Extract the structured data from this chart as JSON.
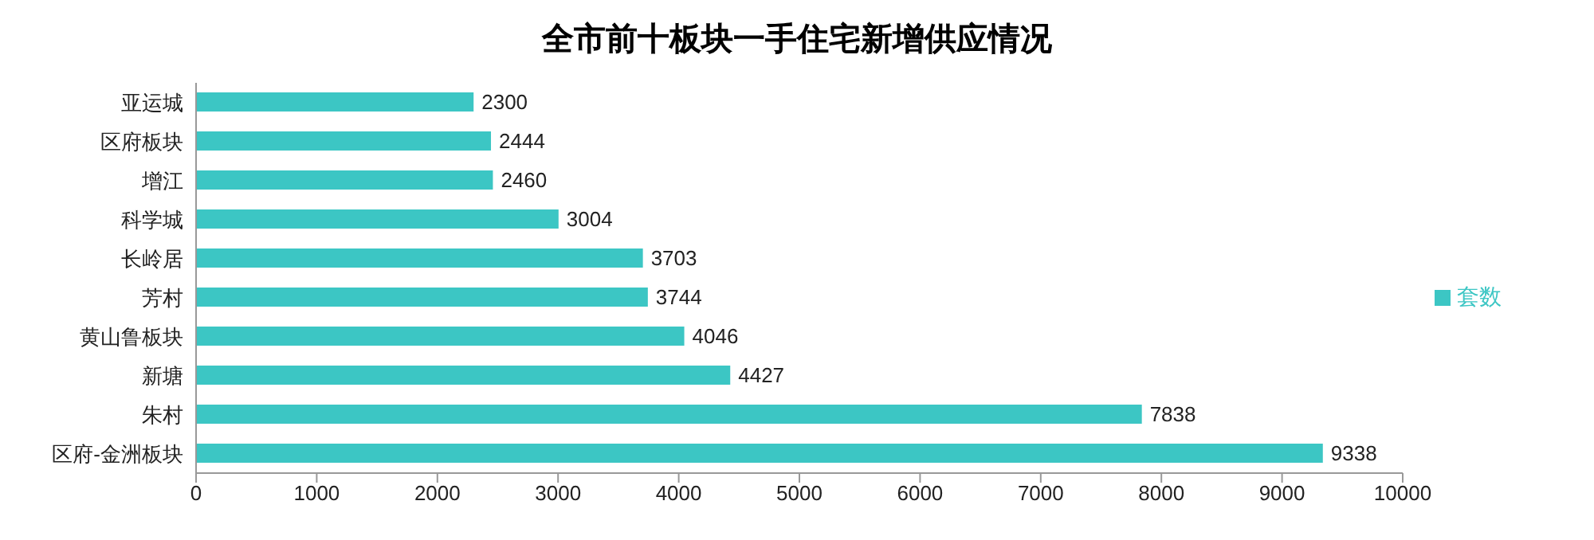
{
  "chart_data": {
    "type": "bar",
    "orientation": "horizontal",
    "title": "全市前十板块一手住宅新增供应情况",
    "categories": [
      "亚运城",
      "区府板块",
      "增江",
      "科学城",
      "长岭居",
      "芳村",
      "黄山鲁板块",
      "新塘",
      "朱村",
      "区府-金洲板块"
    ],
    "series": [
      {
        "name": "套数",
        "color": "#3cc6c4",
        "values": [
          2300,
          2444,
          2460,
          3004,
          3703,
          3744,
          4046,
          4427,
          7838,
          9338
        ]
      }
    ],
    "xlim": [
      0,
      10000
    ],
    "xticks": [
      0,
      1000,
      2000,
      3000,
      4000,
      5000,
      6000,
      7000,
      8000,
      9000,
      10000
    ],
    "data_labels": true,
    "legend": "right"
  }
}
